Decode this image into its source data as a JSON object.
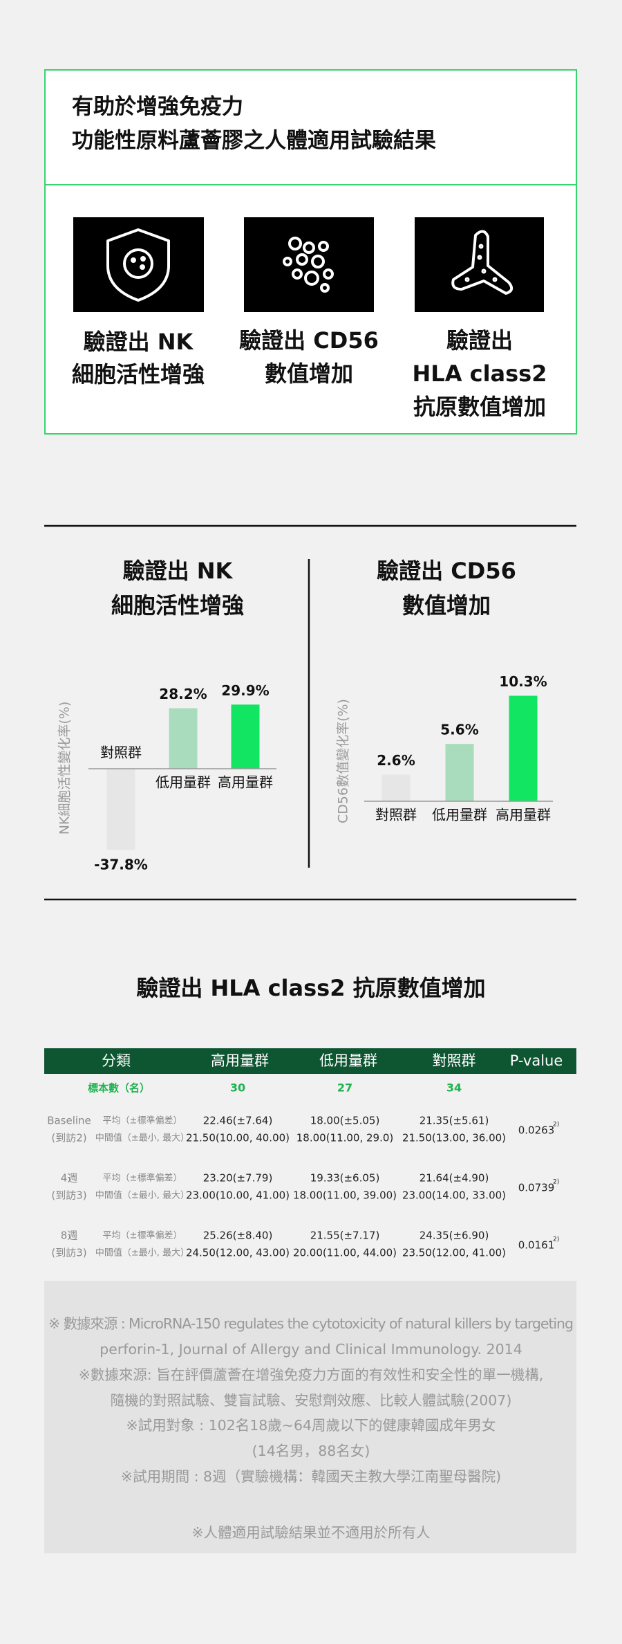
{
  "header": {
    "title_lines": [
      "有助於增強免疫力",
      "功能性原料蘆薈膠之人體適用試驗結果"
    ]
  },
  "features": [
    {
      "label_lines": [
        "驗證出 NK",
        "細胞活性增強"
      ]
    },
    {
      "label_lines": [
        "驗證出 CD56",
        "數值增加"
      ]
    },
    {
      "label_lines": [
        "驗證出",
        "HLA class2",
        "抗原數值增加"
      ]
    }
  ],
  "chart_data": [
    {
      "type": "bar",
      "title": [
        "驗證出 NK",
        "細胞活性增強"
      ],
      "y_label": "NK細胞活性變化率(%)",
      "categories": [
        "對照群",
        "低用量群",
        "高用量群"
      ],
      "values": [
        -37.8,
        28.2,
        29.9
      ],
      "value_labels": [
        "-37.8%",
        "28.2%",
        "29.9%"
      ],
      "colors": [
        "#e6e6e6",
        "#a9dcbc",
        "#12e562"
      ]
    },
    {
      "type": "bar",
      "title": [
        "驗證出 CD56",
        "數值增加"
      ],
      "y_label": "CD56數值變化率(%)",
      "categories": [
        "對照群",
        "低用量群",
        "高用量群"
      ],
      "values": [
        2.6,
        5.6,
        10.3
      ],
      "value_labels": [
        "2.6%",
        "5.6%",
        "10.3%"
      ],
      "colors": [
        "#e6e6e6",
        "#a9dcbc",
        "#12e562"
      ]
    }
  ],
  "hla_section": {
    "title": "驗證出 HLA class2 抗原數值增加"
  },
  "table": {
    "header": [
      "分類",
      "高用量群",
      "低用量群",
      "對照群",
      "P-value"
    ],
    "sample_row": {
      "label": "標本數（名）",
      "values": [
        "30",
        "27",
        "34"
      ]
    },
    "rows": [
      {
        "label": [
          "Baseline",
          "(到訪2)"
        ],
        "stats": [
          "平均（±標準偏差）",
          "中間值（±最小, 最大）"
        ],
        "cells": [
          [
            "22.46(±7.64)",
            "21.50(10.00, 40.00)"
          ],
          [
            "18.00(±5.05)",
            "18.00(11.00, 29.0)"
          ],
          [
            "21.35(±5.61)",
            "21.50(13.00, 36.00)"
          ]
        ],
        "p_value": "0.0263",
        "p_note": "2)"
      },
      {
        "label": [
          "4週",
          "(到訪3)"
        ],
        "stats": [
          "平均（±標準偏差）",
          "中間值（±最小, 最大）"
        ],
        "cells": [
          [
            "23.20(±7.79)",
            "23.00(10.00, 41.00)"
          ],
          [
            "19.33(±6.05)",
            "18.00(11.00, 39.00)"
          ],
          [
            "21.64(±4.90)",
            "23.00(14.00, 33.00)"
          ]
        ],
        "p_value": "0.0739",
        "p_note": "2)"
      },
      {
        "label": [
          "8週",
          "(到訪3)"
        ],
        "stats": [
          "平均（±標準偏差）",
          "中間值（±最小, 最大）"
        ],
        "cells": [
          [
            "25.26(±8.40)",
            "24.50(12.00, 43.00)"
          ],
          [
            "21.55(±7.17)",
            "20.00(11.00, 44.00)"
          ],
          [
            "24.35(±6.90)",
            "23.50(12.00, 41.00)"
          ]
        ],
        "p_value": "0.0161",
        "p_note": "2)"
      }
    ]
  },
  "notes": [
    "※ 數據來源 : MicroRNA-150 regulates the cytotoxicity of natural killers by targeting",
    "perforin-1, Journal of Allergy and Clinical Immunology. 2014",
    "※數據來源: 旨在評價蘆薈在增強免疫力方面的有效性和安全性的單一機構,",
    "隨機的對照試驗、雙盲試驗、安慰劑效應、比較人體試驗(2007)",
    "※試用對象 : 102名18歲~64周歲以下的健康韓國成年男女",
    "(14名男，88名女)",
    "※試用期間 : 8週（實驗機構：韓國天主教大學江南聖母醫院)",
    "※人體適用試驗結果並不適用於所有人"
  ]
}
